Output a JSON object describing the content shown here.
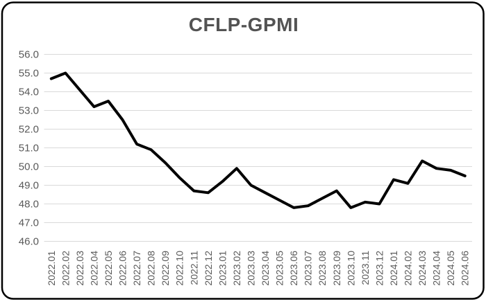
{
  "chart_data": {
    "type": "line",
    "title": "CFLP-GPMI",
    "series_name": "CFLP-GPMI",
    "categories": [
      "2022.01",
      "2022.02",
      "2022.03",
      "2022.04",
      "2022.05",
      "2022.06",
      "2022.07",
      "2022.08",
      "2022.09",
      "2022.10",
      "2022.11",
      "2022.12",
      "2023.01",
      "2023.02",
      "2023.03",
      "2023.04",
      "2023.05",
      "2023.06",
      "2023.07",
      "2023.08",
      "2023.09",
      "2023.10",
      "2023.11",
      "2023.12",
      "2024.01",
      "2024.02",
      "2024.03",
      "2024.04",
      "2024.05",
      "2024.06"
    ],
    "values": [
      54.7,
      55.0,
      54.1,
      53.2,
      53.5,
      52.5,
      51.2,
      50.9,
      50.2,
      49.4,
      48.7,
      48.6,
      49.2,
      49.9,
      49.0,
      48.6,
      48.2,
      47.8,
      47.9,
      48.3,
      48.7,
      47.8,
      48.1,
      48.0,
      49.3,
      49.1,
      50.3,
      49.9,
      49.8,
      49.5
    ],
    "ylim": [
      46.0,
      56.0
    ],
    "y_ticks": [
      "56.0",
      "55.0",
      "54.0",
      "53.0",
      "52.0",
      "51.0",
      "50.0",
      "49.0",
      "48.0",
      "47.0",
      "46.0"
    ],
    "xlabel": "",
    "ylabel": "",
    "grid": "horizontal-only",
    "legend": "none",
    "x_label_rotation": -90,
    "colors": {
      "line": "#000000",
      "grid": "#d9d9d9",
      "tick_label": "#595959",
      "title": "#535353",
      "border": "#000000"
    }
  }
}
